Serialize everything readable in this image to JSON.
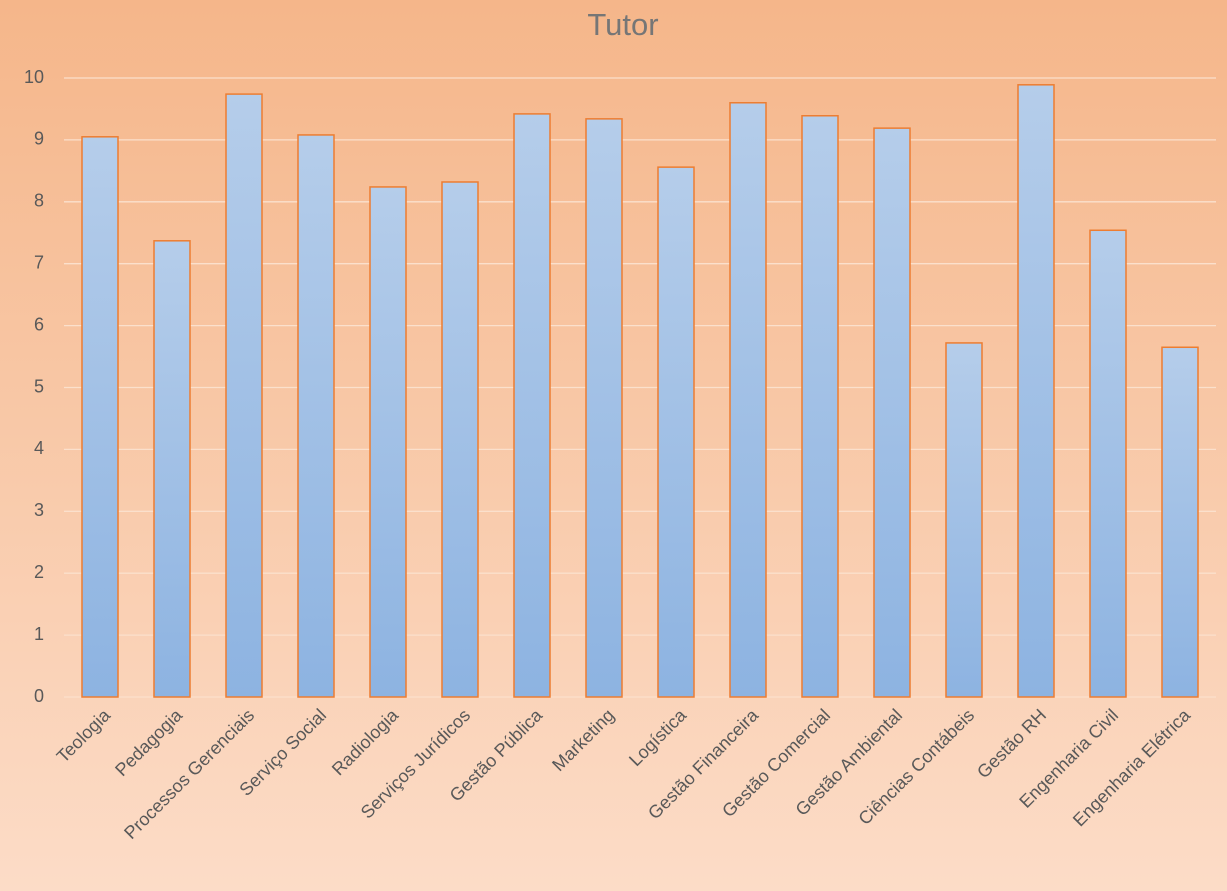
{
  "chart_data": {
    "type": "bar",
    "title": "Tutor",
    "categories": [
      "Teologia",
      "Pedagogia",
      "Processos Gerenciais",
      "Serviço Social",
      "Radiologia",
      "Serviços Jurídicos",
      "Gestão Pública",
      "Marketing",
      "Logística",
      "Gestão Financeira",
      "Gestão Comercial",
      "Gestão Ambiental",
      "Ciências Contábeis",
      "Gestão RH",
      "Engenharia Civil",
      "Engenharia Elétrica"
    ],
    "values": [
      9.05,
      7.37,
      9.74,
      9.08,
      8.24,
      8.32,
      9.42,
      9.34,
      8.56,
      9.6,
      9.39,
      9.19,
      5.72,
      9.89,
      7.54,
      5.65
    ],
    "color": "#9dbde4",
    "ylim": [
      0,
      10
    ],
    "yticks": [
      0,
      1,
      2,
      3,
      4,
      5,
      6,
      7,
      8,
      9,
      10
    ],
    "grid": true
  }
}
